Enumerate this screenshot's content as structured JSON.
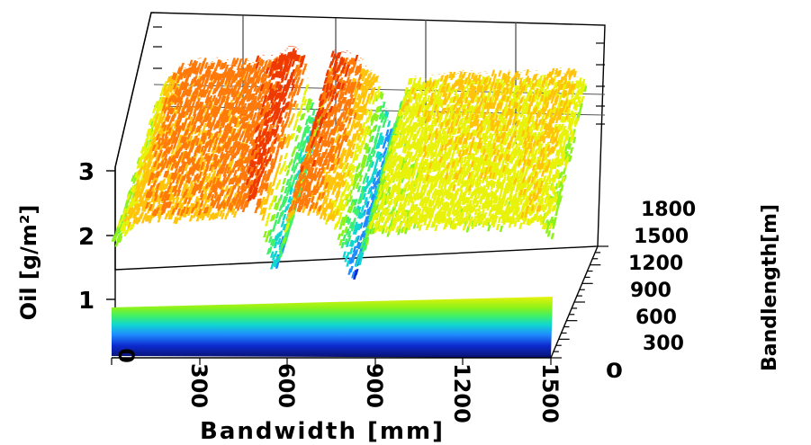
{
  "chart_data": {
    "type": "surface3d",
    "x_axis": {
      "label": "Bandwidth [mm]",
      "ticks": [
        "0",
        "300",
        "600",
        "900",
        "1200",
        "1500"
      ],
      "range": [
        0,
        1500
      ]
    },
    "y_axis": {
      "label": "Bandlength[m]",
      "ticks": [
        "0",
        "300",
        "600",
        "900",
        "1200",
        "1500",
        "1800"
      ],
      "range": [
        0,
        1800
      ]
    },
    "z_axis": {
      "label": "Oil [g/m²]",
      "ticks": [
        "1",
        "2",
        "3"
      ],
      "range": [
        0,
        5
      ]
    },
    "surface_profile": {
      "x": [
        0,
        60,
        120,
        200,
        300,
        400,
        480,
        510,
        530,
        555,
        580,
        610,
        650,
        700,
        760,
        790,
        820,
        850,
        880,
        950,
        1050,
        1150,
        1250,
        1350,
        1440,
        1500
      ],
      "z": [
        1.9,
        2.6,
        2.8,
        2.8,
        2.8,
        2.9,
        3.2,
        2.8,
        1.6,
        1.0,
        1.7,
        3.0,
        3.0,
        2.8,
        2.4,
        1.5,
        0.7,
        1.5,
        2.2,
        2.2,
        2.3,
        2.3,
        2.3,
        2.3,
        2.4,
        2.0
      ]
    },
    "colormap": [
      "#08106e",
      "#0d2bd0",
      "#1f8cff",
      "#10d6d0",
      "#3ef06a",
      "#8cf21a",
      "#e8f20a",
      "#ffc40a",
      "#ff7a0a",
      "#ee3a00"
    ],
    "grid": true
  }
}
